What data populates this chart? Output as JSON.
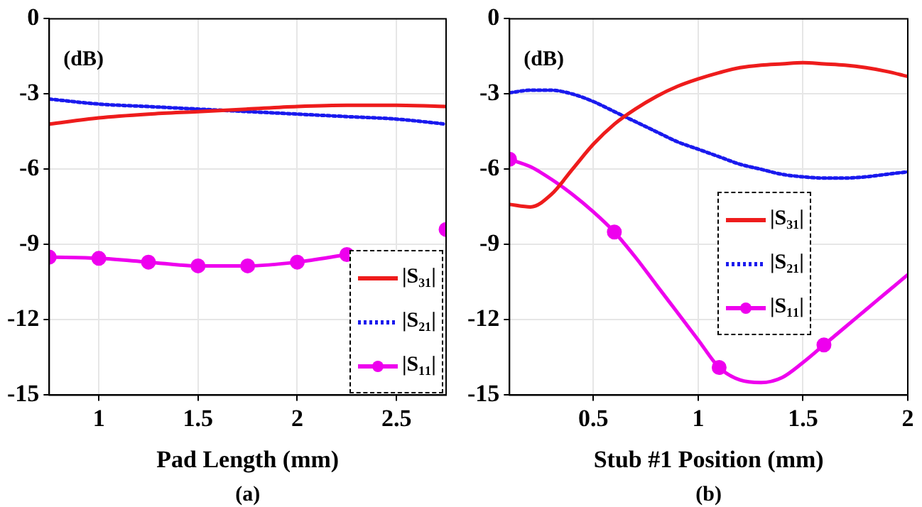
{
  "chart_data": [
    {
      "type": "line",
      "xlabel": "Pad Length (mm)",
      "ylabel": "(dB)",
      "annotations": [
        "(a)"
      ],
      "xlim": [
        0.75,
        2.75
      ],
      "xticks": [
        1,
        1.5,
        2,
        2.5
      ],
      "ylim": [
        -15,
        0
      ],
      "yticks": [
        -15,
        -12,
        -9,
        -6,
        -3,
        0
      ],
      "grid": true,
      "legend": "bottom right",
      "series": [
        {
          "name": "|S₃₁|",
          "color": "#ee1c1c",
          "line_style": "solid",
          "marker": "none",
          "x": [
            0.75,
            1,
            1.25,
            1.5,
            1.75,
            2,
            2.25,
            2.5,
            2.75
          ],
          "values": [
            -4.2,
            -3.95,
            -3.8,
            -3.7,
            -3.6,
            -3.5,
            -3.45,
            -3.45,
            -3.5
          ]
        },
        {
          "name": "|S₂₁|",
          "color": "#1a1aee",
          "line_style": "dotted",
          "marker": "none",
          "x": [
            0.75,
            1,
            1.25,
            1.5,
            1.75,
            2,
            2.25,
            2.5,
            2.75
          ],
          "values": [
            -3.2,
            -3.4,
            -3.5,
            -3.6,
            -3.7,
            -3.8,
            -3.9,
            -4.0,
            -4.2
          ]
        },
        {
          "name": "|S₁₁|",
          "color": "#ee00ee",
          "line_style": "solid",
          "marker": "circle",
          "x": [
            0.75,
            1,
            1.25,
            1.5,
            1.75,
            2,
            2.25,
            2.5,
            2.75
          ],
          "values": [
            -9.5,
            -9.55,
            -9.7,
            -9.85,
            -9.85,
            -9.7,
            -9.4,
            null,
            -8.4
          ]
        }
      ]
    },
    {
      "type": "line",
      "xlabel": "Stub #1 Position (mm)",
      "ylabel": "(dB)",
      "annotations": [
        "(b)"
      ],
      "xlim": [
        0.1,
        2
      ],
      "xticks": [
        0.5,
        1,
        1.5,
        2
      ],
      "ylim": [
        -15,
        0
      ],
      "yticks": [
        -15,
        -12,
        -9,
        -6,
        -3,
        0
      ],
      "grid": true,
      "legend": "right",
      "series": [
        {
          "name": "|S₃₁|",
          "color": "#ee1c1c",
          "line_style": "solid",
          "marker": "none",
          "x": [
            0.1,
            0.2,
            0.3,
            0.4,
            0.5,
            0.6,
            0.7,
            0.8,
            0.9,
            1.0,
            1.1,
            1.2,
            1.3,
            1.4,
            1.5,
            1.6,
            1.7,
            1.8,
            1.9,
            2.0
          ],
          "values": [
            -7.4,
            -7.5,
            -7.0,
            -6.0,
            -5.0,
            -4.2,
            -3.6,
            -3.1,
            -2.7,
            -2.4,
            -2.15,
            -1.95,
            -1.85,
            -1.8,
            -1.75,
            -1.8,
            -1.85,
            -1.95,
            -2.1,
            -2.3
          ]
        },
        {
          "name": "|S₂₁|",
          "color": "#1a1aee",
          "line_style": "dotted",
          "marker": "none",
          "x": [
            0.1,
            0.2,
            0.3,
            0.4,
            0.5,
            0.6,
            0.7,
            0.8,
            0.9,
            1.0,
            1.1,
            1.2,
            1.3,
            1.4,
            1.5,
            1.6,
            1.7,
            1.8,
            1.9,
            2.0
          ],
          "values": [
            -2.95,
            -2.85,
            -2.85,
            -3.0,
            -3.3,
            -3.7,
            -4.1,
            -4.5,
            -4.9,
            -5.2,
            -5.5,
            -5.8,
            -6.0,
            -6.2,
            -6.3,
            -6.35,
            -6.35,
            -6.3,
            -6.2,
            -6.1
          ]
        },
        {
          "type": "line",
          "color": "#ee00ee",
          "line_style": "solid",
          "marker": "none",
          "x": [
            0.1,
            0.2,
            0.3,
            0.4,
            0.5,
            0.6,
            0.7,
            0.8,
            0.9,
            1.0,
            1.1,
            1.2,
            1.3,
            1.4,
            1.5,
            1.6,
            1.7,
            1.8,
            1.9,
            2.0
          ],
          "values": [
            -5.6,
            -5.9,
            -6.4,
            -7.0,
            -7.7,
            -8.5,
            -9.5,
            -10.6,
            -11.7,
            -12.8,
            -13.9,
            -14.4,
            -14.5,
            -14.3,
            -13.7,
            -13.0,
            -12.3,
            -11.6,
            -10.9,
            -10.2
          ]
        },
        {
          "type": "scatter",
          "name": "|S₁₁|",
          "color": "#ee00ee",
          "line_style": "solid",
          "marker": "circle",
          "x": [
            0.1,
            0.6,
            1.1,
            1.6
          ],
          "values": [
            -5.6,
            -8.5,
            -13.9,
            -13.0
          ]
        }
      ]
    }
  ]
}
